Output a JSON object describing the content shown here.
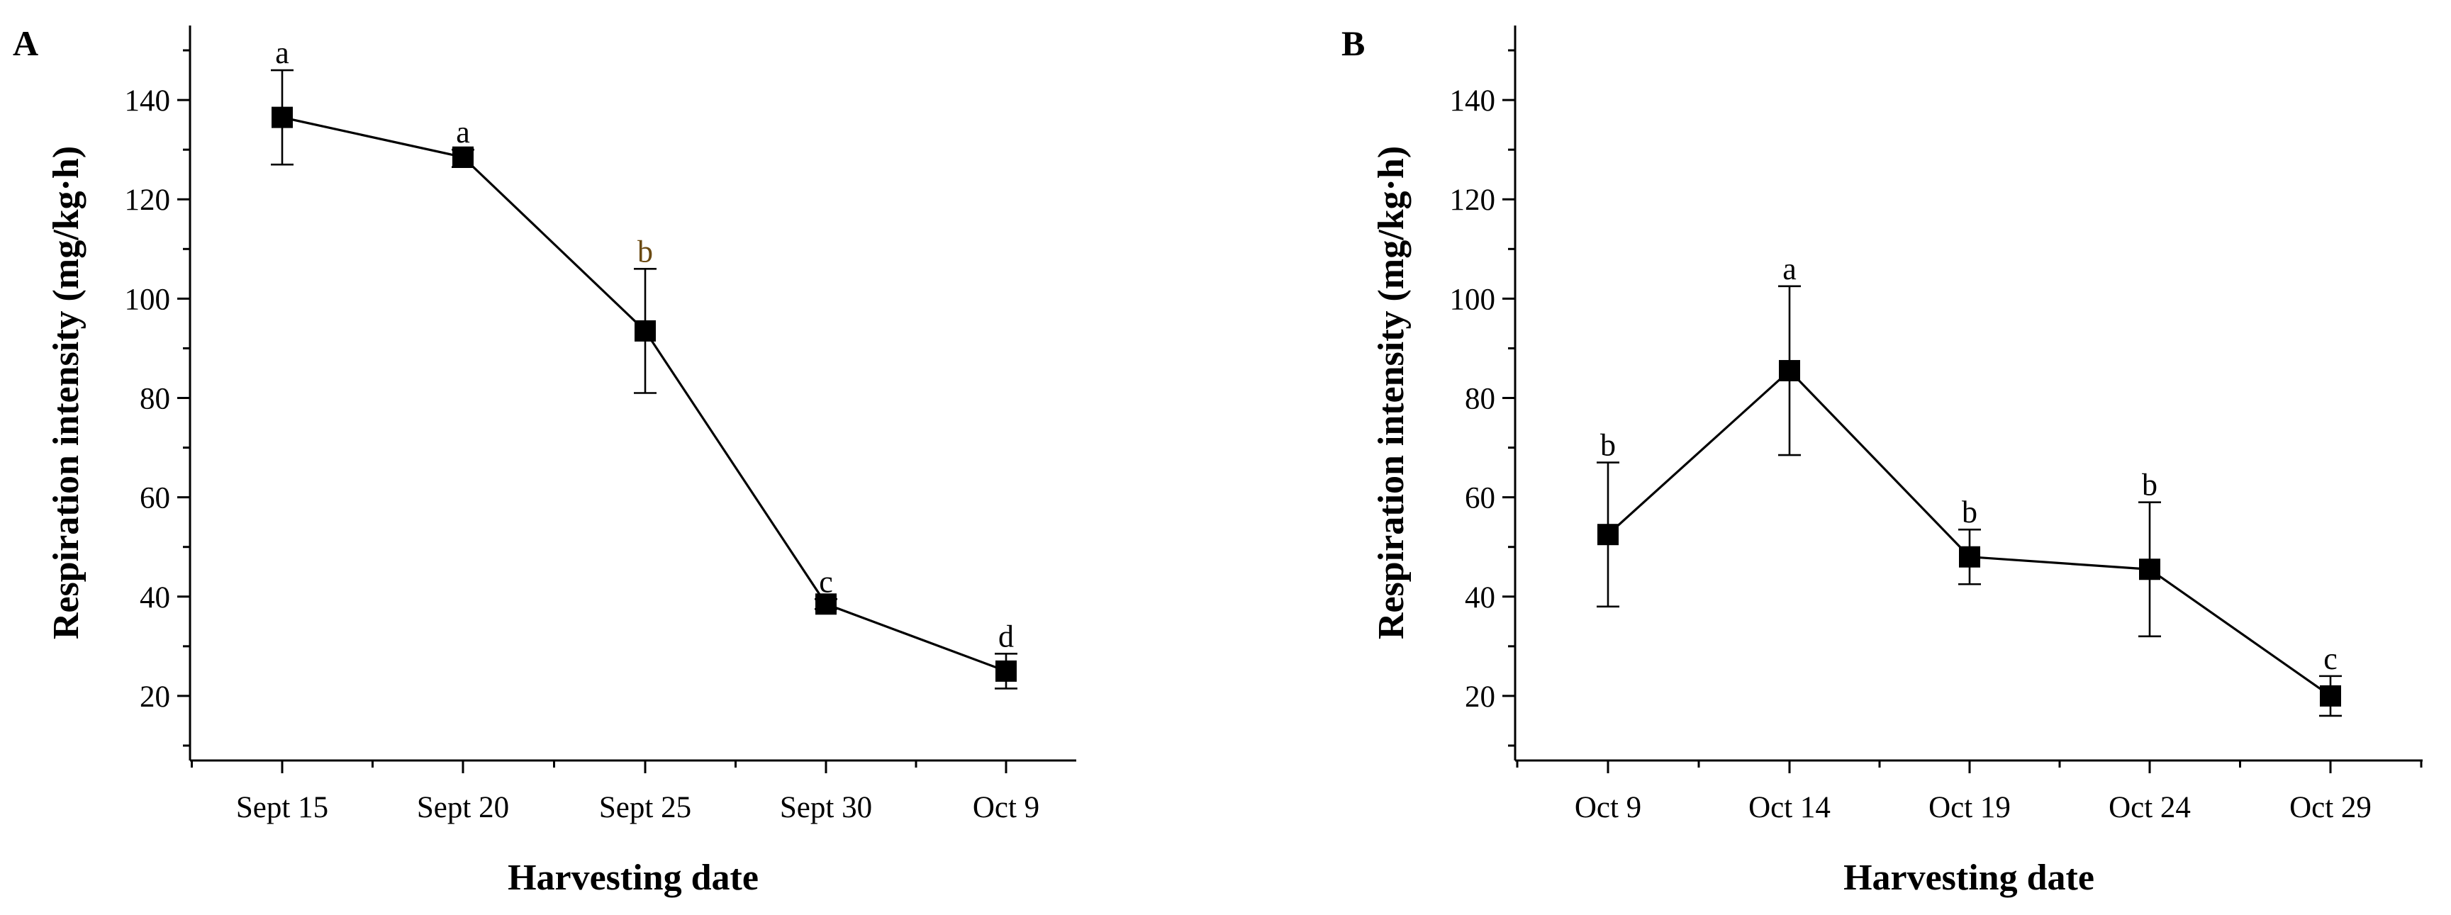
{
  "chart_data": [
    {
      "panel": "A",
      "type": "line",
      "xlabel": "Harvesting date",
      "ylabel": "Respiration intensity (mg/kg·h)",
      "categories": [
        "Sept 15",
        "Sept 20",
        "Sept 25",
        "Sept 30",
        "Oct 9"
      ],
      "values": [
        136.5,
        128.5,
        93.5,
        38.5,
        25
      ],
      "err_low": [
        127,
        126.5,
        81,
        37.5,
        21.5
      ],
      "err_high": [
        146,
        130,
        106,
        39.5,
        28.5
      ],
      "sig_labels": [
        "a",
        "a",
        "b",
        "c",
        "d"
      ],
      "ylim": [
        7,
        155
      ],
      "yticks": [
        20,
        40,
        60,
        80,
        100,
        120,
        140
      ],
      "marker_color": "#000000"
    },
    {
      "panel": "B",
      "type": "line",
      "xlabel": "Harvesting date",
      "ylabel": "Respiration intensity (mg/kg·h)",
      "categories": [
        "Oct 9",
        "Oct 14",
        "Oct 19",
        "Oct 24",
        "Oct 29"
      ],
      "values": [
        52.5,
        85.5,
        48,
        45.5,
        20
      ],
      "err_low": [
        38,
        68.5,
        42.5,
        32,
        16
      ],
      "err_high": [
        67,
        102.5,
        53.5,
        59,
        24
      ],
      "sig_labels": [
        "b",
        "a",
        "b",
        "b",
        "c"
      ],
      "ylim": [
        7,
        155
      ],
      "yticks": [
        20,
        40,
        60,
        80,
        100,
        120,
        140
      ],
      "marker_color": "#000000"
    }
  ]
}
